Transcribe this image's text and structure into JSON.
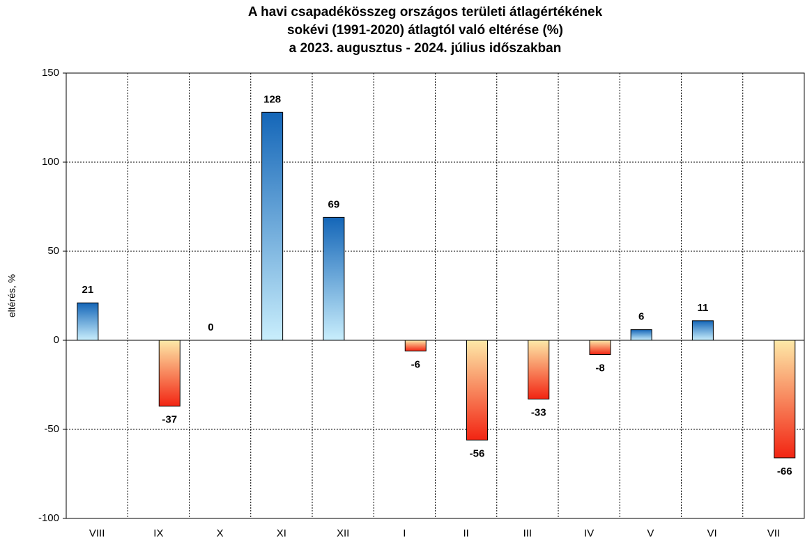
{
  "chart_data": {
    "type": "bar",
    "title": [
      "A havi csapadékösszeg országos területi átlagértékének",
      "sokévi (1991-2020) átlagtól való eltérése (%)",
      "a 2023. augusztus - 2024. július időszakban"
    ],
    "y_label": "eltérés, %",
    "categories": [
      "VIII",
      "IX",
      "X",
      "XI",
      "XII",
      "I",
      "II",
      "III",
      "IV",
      "V",
      "VI",
      "VII"
    ],
    "series": [
      {
        "colors": [
          "#1466b8",
          "#c9eefc"
        ],
        "values": [
          21,
          null,
          0,
          128,
          69,
          null,
          null,
          null,
          null,
          6,
          11,
          null
        ]
      },
      {
        "colors": [
          "#fde9a8",
          "#f22412"
        ],
        "values": [
          null,
          -37,
          null,
          null,
          null,
          -6,
          -56,
          -33,
          -8,
          null,
          null,
          -66
        ]
      }
    ],
    "ylim": [
      -100,
      150
    ],
    "yticks": [
      -100,
      -50,
      0,
      50,
      100,
      150
    ],
    "grid": true
  }
}
